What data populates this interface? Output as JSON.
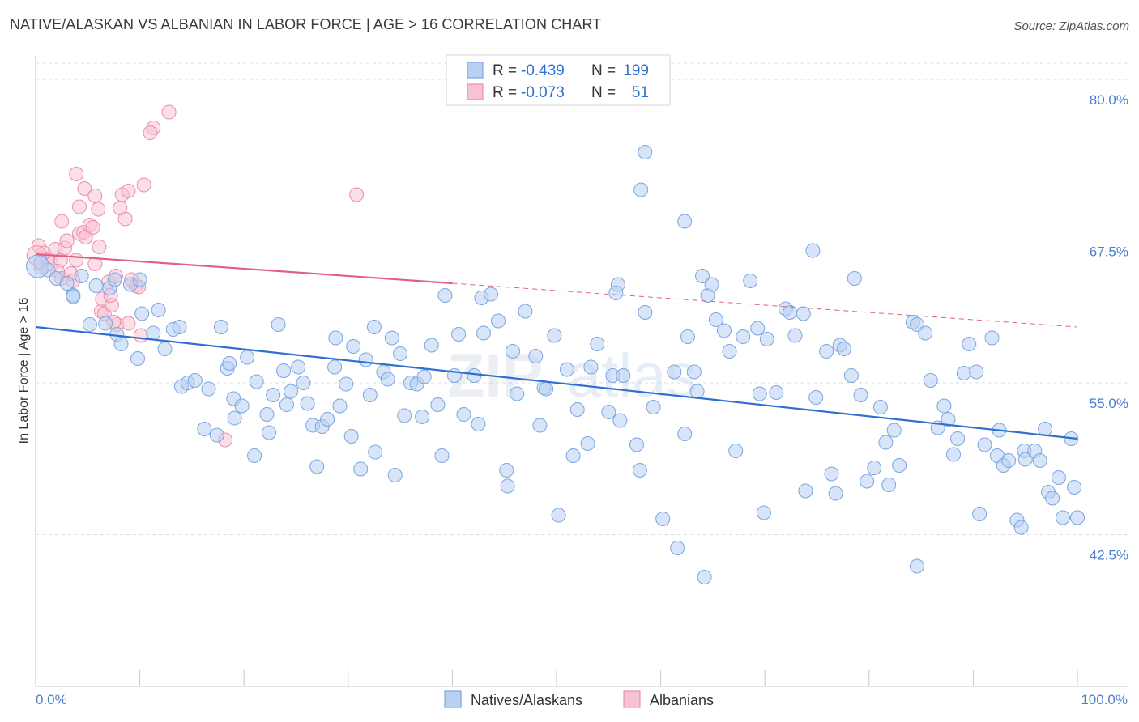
{
  "title": "NATIVE/ALASKAN VS ALBANIAN IN LABOR FORCE | AGE > 16 CORRELATION CHART",
  "source": "Source: ZipAtlas.com",
  "colors": {
    "blue_fill": "#b8d0f2",
    "blue_stroke": "#7aa6e0",
    "blue_line": "#2f6fd1",
    "pink_fill": "#f7c2d2",
    "pink_stroke": "#ec8fad",
    "pink_line": "#e0607f",
    "tick_text": "#4a7fd0",
    "grid": "#dcdcdc"
  },
  "stats": {
    "r_label": "R =",
    "n_label": "N =",
    "series1": {
      "r": "-0.439",
      "n": "199"
    },
    "series2": {
      "r": "-0.073",
      "n": "51"
    }
  },
  "chart_data": {
    "type": "scatter",
    "xlabel": "",
    "ylabel": "In Labor Force | Age > 16",
    "xlim": [
      0,
      100
    ],
    "ylim": [
      30,
      82
    ],
    "x_tick_labels": [
      "0.0%",
      "100.0%"
    ],
    "y_ticks": [
      42.5,
      55.0,
      67.5,
      80.0
    ],
    "y_tick_labels": [
      "42.5%",
      "55.0%",
      "67.5%",
      "80.0%"
    ],
    "grid": true,
    "legend_position": "bottom-center",
    "series": [
      {
        "name": "Natives/Alaskans",
        "trend": {
          "x0": 0,
          "y0": 59.6,
          "x1": 100,
          "y1": 50.4,
          "r": -0.439,
          "n": 199
        },
        "points": [
          [
            0.5,
            64.9
          ],
          [
            1.2,
            64.3
          ],
          [
            2.0,
            63.6
          ],
          [
            3.0,
            63.2
          ],
          [
            3.6,
            62.2
          ],
          [
            4.4,
            63.8
          ],
          [
            5.8,
            63.0
          ],
          [
            7.1,
            62.8
          ],
          [
            7.6,
            63.5
          ],
          [
            9.1,
            63.1
          ],
          [
            10.0,
            63.5
          ],
          [
            5.2,
            59.8
          ],
          [
            3.6,
            62.1
          ],
          [
            6.7,
            59.9
          ],
          [
            7.8,
            59.0
          ],
          [
            8.2,
            58.2
          ],
          [
            9.8,
            57.0
          ],
          [
            10.2,
            60.7
          ],
          [
            11.3,
            59.1
          ],
          [
            11.8,
            61.0
          ],
          [
            12.4,
            57.8
          ],
          [
            13.2,
            59.4
          ],
          [
            13.8,
            59.6
          ],
          [
            14.0,
            54.7
          ],
          [
            14.6,
            55.0
          ],
          [
            15.3,
            55.2
          ],
          [
            16.2,
            51.2
          ],
          [
            16.6,
            54.5
          ],
          [
            17.4,
            50.7
          ],
          [
            17.8,
            59.6
          ],
          [
            18.4,
            56.2
          ],
          [
            18.6,
            56.6
          ],
          [
            19.0,
            53.7
          ],
          [
            19.1,
            52.1
          ],
          [
            19.8,
            53.1
          ],
          [
            20.3,
            57.1
          ],
          [
            21.0,
            49.0
          ],
          [
            21.2,
            55.1
          ],
          [
            22.2,
            52.4
          ],
          [
            22.4,
            50.9
          ],
          [
            22.8,
            54.0
          ],
          [
            23.3,
            59.8
          ],
          [
            23.8,
            56.0
          ],
          [
            24.1,
            53.2
          ],
          [
            24.5,
            54.3
          ],
          [
            25.2,
            56.3
          ],
          [
            25.7,
            55.0
          ],
          [
            26.1,
            53.3
          ],
          [
            26.6,
            51.5
          ],
          [
            27.0,
            48.1
          ],
          [
            27.5,
            51.4
          ],
          [
            28.0,
            52.0
          ],
          [
            28.7,
            56.3
          ],
          [
            28.8,
            58.7
          ],
          [
            29.2,
            53.1
          ],
          [
            29.8,
            54.9
          ],
          [
            30.3,
            50.6
          ],
          [
            30.5,
            58.0
          ],
          [
            31.2,
            47.9
          ],
          [
            31.7,
            56.9
          ],
          [
            32.1,
            54.0
          ],
          [
            32.5,
            59.6
          ],
          [
            32.6,
            49.3
          ],
          [
            33.4,
            55.9
          ],
          [
            33.8,
            55.3
          ],
          [
            34.2,
            58.7
          ],
          [
            34.5,
            47.4
          ],
          [
            35.0,
            57.4
          ],
          [
            35.4,
            52.3
          ],
          [
            36.0,
            55.0
          ],
          [
            36.6,
            54.9
          ],
          [
            37.1,
            52.2
          ],
          [
            37.3,
            55.5
          ],
          [
            38.0,
            58.1
          ],
          [
            38.6,
            53.2
          ],
          [
            39.0,
            49.0
          ],
          [
            39.3,
            62.2
          ],
          [
            40.2,
            55.6
          ],
          [
            40.6,
            59.0
          ],
          [
            41.1,
            52.4
          ],
          [
            42.1,
            55.6
          ],
          [
            42.5,
            51.6
          ],
          [
            42.8,
            62.0
          ],
          [
            43.0,
            59.1
          ],
          [
            43.7,
            62.3
          ],
          [
            44.4,
            60.1
          ],
          [
            45.2,
            47.8
          ],
          [
            45.3,
            46.5
          ],
          [
            45.8,
            57.6
          ],
          [
            46.2,
            54.1
          ],
          [
            47.0,
            60.9
          ],
          [
            48.0,
            57.2
          ],
          [
            48.4,
            51.5
          ],
          [
            48.8,
            54.6
          ],
          [
            49.0,
            54.5
          ],
          [
            49.8,
            58.9
          ],
          [
            50.2,
            44.1
          ],
          [
            51.0,
            56.1
          ],
          [
            51.6,
            49.0
          ],
          [
            52.0,
            52.8
          ],
          [
            53.0,
            50.0
          ],
          [
            53.3,
            56.3
          ],
          [
            53.9,
            58.2
          ],
          [
            55.0,
            52.6
          ],
          [
            55.4,
            55.6
          ],
          [
            56.1,
            51.9
          ],
          [
            55.9,
            63.1
          ],
          [
            55.7,
            62.4
          ],
          [
            56.4,
            55.6
          ],
          [
            57.7,
            49.9
          ],
          [
            58.0,
            47.8
          ],
          [
            58.5,
            60.8
          ],
          [
            59.3,
            53.0
          ],
          [
            60.2,
            43.8
          ],
          [
            61.3,
            55.9
          ],
          [
            61.6,
            41.4
          ],
          [
            62.6,
            58.8
          ],
          [
            62.3,
            50.8
          ],
          [
            63.2,
            55.9
          ],
          [
            63.5,
            54.3
          ],
          [
            64.2,
            39.0
          ],
          [
            64.5,
            62.2
          ],
          [
            64.0,
            63.8
          ],
          [
            64.9,
            63.1
          ],
          [
            65.3,
            60.2
          ],
          [
            66.1,
            59.3
          ],
          [
            66.6,
            57.6
          ],
          [
            67.2,
            49.4
          ],
          [
            67.9,
            58.8
          ],
          [
            68.6,
            63.4
          ],
          [
            69.3,
            59.5
          ],
          [
            69.5,
            54.1
          ],
          [
            69.9,
            44.3
          ],
          [
            70.2,
            58.6
          ],
          [
            71.1,
            54.2
          ],
          [
            72.0,
            61.1
          ],
          [
            72.4,
            60.8
          ],
          [
            72.9,
            58.9
          ],
          [
            73.7,
            60.7
          ],
          [
            73.9,
            46.1
          ],
          [
            74.6,
            65.9
          ],
          [
            74.9,
            53.8
          ],
          [
            75.9,
            57.6
          ],
          [
            76.4,
            47.5
          ],
          [
            76.8,
            45.9
          ],
          [
            77.2,
            58.1
          ],
          [
            77.6,
            57.8
          ],
          [
            78.3,
            55.6
          ],
          [
            78.6,
            63.6
          ],
          [
            79.2,
            54.0
          ],
          [
            79.8,
            46.9
          ],
          [
            80.5,
            48.0
          ],
          [
            81.1,
            53.0
          ],
          [
            81.6,
            50.1
          ],
          [
            81.9,
            46.6
          ],
          [
            82.4,
            51.1
          ],
          [
            82.9,
            48.2
          ],
          [
            84.2,
            60.0
          ],
          [
            84.6,
            59.8
          ],
          [
            84.6,
            39.9
          ],
          [
            85.4,
            59.1
          ],
          [
            85.9,
            55.2
          ],
          [
            86.6,
            51.3
          ],
          [
            87.2,
            53.1
          ],
          [
            87.6,
            52.0
          ],
          [
            88.1,
            49.1
          ],
          [
            88.5,
            50.4
          ],
          [
            89.1,
            55.8
          ],
          [
            89.6,
            58.2
          ],
          [
            90.3,
            55.9
          ],
          [
            90.6,
            44.2
          ],
          [
            91.1,
            49.9
          ],
          [
            91.8,
            58.7
          ],
          [
            92.3,
            49.0
          ],
          [
            92.5,
            51.1
          ],
          [
            92.9,
            48.2
          ],
          [
            93.4,
            48.6
          ],
          [
            94.2,
            43.7
          ],
          [
            94.6,
            43.1
          ],
          [
            94.9,
            49.4
          ],
          [
            95.0,
            48.7
          ],
          [
            95.9,
            49.4
          ],
          [
            96.4,
            48.6
          ],
          [
            96.9,
            51.2
          ],
          [
            97.2,
            46.0
          ],
          [
            97.6,
            45.5
          ],
          [
            98.2,
            47.2
          ],
          [
            98.6,
            43.9
          ],
          [
            99.4,
            50.4
          ],
          [
            99.7,
            46.4
          ],
          [
            100.0,
            43.9
          ],
          [
            58.5,
            74.0
          ],
          [
            58.1,
            70.9
          ],
          [
            62.3,
            68.3
          ]
        ]
      },
      {
        "name": "Albanians",
        "trend": {
          "x0": 0,
          "y0": 65.6,
          "x1": 40,
          "y1": 63.2,
          "r": -0.073,
          "n": 51
        },
        "points": [
          [
            0.3,
            66.3
          ],
          [
            0.8,
            65.7
          ],
          [
            0.5,
            64.5
          ],
          [
            1.2,
            65.2
          ],
          [
            1.5,
            64.8
          ],
          [
            1.9,
            66.0
          ],
          [
            2.4,
            65.1
          ],
          [
            2.1,
            64.2
          ],
          [
            2.5,
            63.6
          ],
          [
            2.8,
            66.1
          ],
          [
            3.0,
            66.7
          ],
          [
            3.4,
            64.0
          ],
          [
            3.6,
            63.4
          ],
          [
            3.9,
            65.1
          ],
          [
            4.2,
            67.3
          ],
          [
            4.6,
            67.4
          ],
          [
            4.8,
            67.0
          ],
          [
            5.2,
            68.0
          ],
          [
            5.5,
            67.8
          ],
          [
            5.7,
            64.8
          ],
          [
            6.1,
            66.2
          ],
          [
            6.3,
            60.9
          ],
          [
            6.4,
            61.9
          ],
          [
            6.6,
            60.7
          ],
          [
            7.0,
            63.3
          ],
          [
            7.3,
            61.4
          ],
          [
            7.7,
            63.8
          ],
          [
            7.8,
            59.8
          ],
          [
            8.6,
            68.5
          ],
          [
            8.1,
            69.4
          ],
          [
            8.3,
            70.5
          ],
          [
            8.9,
            70.8
          ],
          [
            9.6,
            63.0
          ],
          [
            9.9,
            62.9
          ],
          [
            10.4,
            71.3
          ],
          [
            11.3,
            76.0
          ],
          [
            11.0,
            75.6
          ],
          [
            4.7,
            71.0
          ],
          [
            2.5,
            68.3
          ],
          [
            4.2,
            69.5
          ],
          [
            5.7,
            70.4
          ],
          [
            3.9,
            72.2
          ],
          [
            6.0,
            69.3
          ],
          [
            7.2,
            62.2
          ],
          [
            7.5,
            60.0
          ],
          [
            8.9,
            59.9
          ],
          [
            9.2,
            63.5
          ],
          [
            10.1,
            58.9
          ],
          [
            18.2,
            50.3
          ],
          [
            30.8,
            70.5
          ],
          [
            12.8,
            77.3
          ]
        ]
      }
    ]
  }
}
